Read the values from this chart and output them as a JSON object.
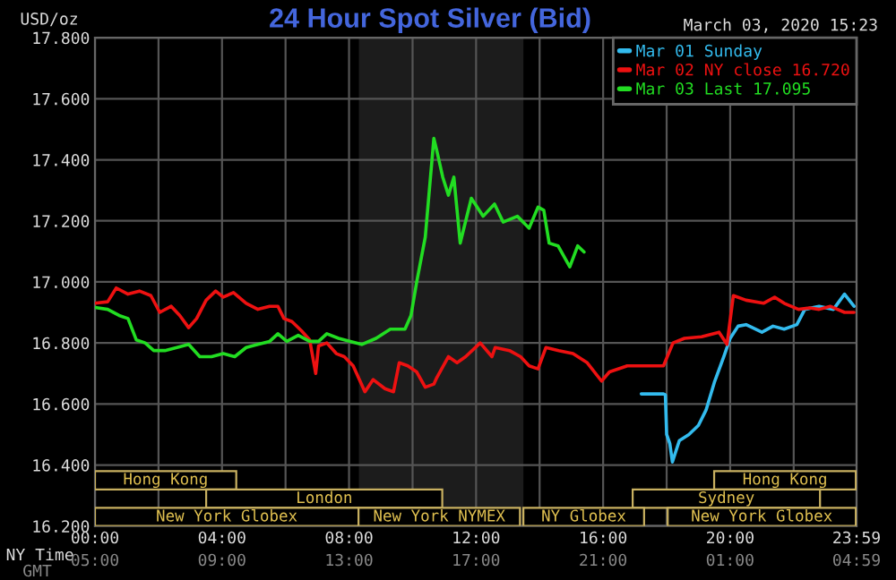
{
  "chart_data": {
    "type": "line",
    "title": "24 Hour Spot Silver (Bid)",
    "subtitle": "March 03, 2020 15:23",
    "xlabel": "NY Time",
    "x2label": "GMT",
    "ylabel": "USD/oz",
    "xlim": [
      0,
      23.98
    ],
    "xticks": [
      {
        "value": 0,
        "label": "00:00"
      },
      {
        "value": 2,
        "label": null
      },
      {
        "value": 4,
        "label": "04:00"
      },
      {
        "value": 6,
        "label": null
      },
      {
        "value": 8,
        "label": "08:00"
      },
      {
        "value": 10,
        "label": null
      },
      {
        "value": 12,
        "label": "12:00"
      },
      {
        "value": 14,
        "label": null
      },
      {
        "value": 16,
        "label": "16:00"
      },
      {
        "value": 18,
        "label": null
      },
      {
        "value": 20,
        "label": "20:00"
      },
      {
        "value": 22,
        "label": null
      },
      {
        "value": 23.98,
        "label": "23:59"
      }
    ],
    "x2lim": [
      "2020-03-03T05:00",
      "2020-03-04T04:59"
    ],
    "x2ticks": [
      {
        "value": "2020-03-03T05:00",
        "label": "05:00"
      },
      {
        "value": "2020-03-03T09:00",
        "label": "09:00"
      },
      {
        "value": "2020-03-03T13:00",
        "label": "13:00"
      },
      {
        "value": "2020-03-03T17:00",
        "label": "17:00"
      },
      {
        "value": "2020-03-03T21:00",
        "label": "21:00"
      },
      {
        "value": "2020-03-04T01:00",
        "label": "01:00"
      },
      {
        "value": "2020-03-04T04:59",
        "label": "04:59"
      }
    ],
    "ylim": [
      16.2,
      17.8
    ],
    "yticks": [
      {
        "value": 16.2,
        "label": "16.200"
      },
      {
        "value": 16.4,
        "label": "16.400"
      },
      {
        "value": 16.6,
        "label": "16.600"
      },
      {
        "value": 16.8,
        "label": "16.800"
      },
      {
        "value": 17.0,
        "label": "17.000"
      },
      {
        "value": 17.2,
        "label": "17.200"
      },
      {
        "value": 17.4,
        "label": "17.400"
      },
      {
        "value": 17.6,
        "label": "17.600"
      },
      {
        "value": 17.8,
        "label": "17.800"
      }
    ],
    "grid": true,
    "legend": "top right",
    "line_style": "solid",
    "bands": [
      {
        "axis": "x",
        "from": 8.31,
        "to": 13.49,
        "color": "#1c1c1c"
      }
    ],
    "annotations": [
      "Hong Kong",
      "Hong Kong",
      "London",
      "Sydney",
      "New York Globex",
      "New York NYMEX",
      "NY Globex",
      "New York Globex"
    ],
    "series": [
      {
        "name": "Mar 01 Sunday",
        "color": "#33bbee",
        "x": [
          17.2,
          17.9,
          17.96,
          18.0,
          18.1,
          18.18,
          18.4,
          18.7,
          19.0,
          19.24,
          19.5,
          19.8,
          20.0,
          20.25,
          20.5,
          21.0,
          21.35,
          21.7,
          22.1,
          22.35,
          22.8,
          23.25,
          23.6,
          23.9
        ],
        "values": [
          16.633,
          16.633,
          16.63,
          16.5,
          16.47,
          16.41,
          16.48,
          16.5,
          16.53,
          16.58,
          16.67,
          16.755,
          16.815,
          16.855,
          16.86,
          16.835,
          16.855,
          16.845,
          16.86,
          16.91,
          16.92,
          16.91,
          16.96,
          16.92
        ]
      },
      {
        "name": "Mar 02 NY close 16.720",
        "color": "#ee1111",
        "x": [
          0,
          0.4,
          0.67,
          1.04,
          1.4,
          1.76,
          2.04,
          2.4,
          2.67,
          2.95,
          3.2,
          3.5,
          3.8,
          4.04,
          4.36,
          4.76,
          5.13,
          5.5,
          5.76,
          5.95,
          6.2,
          6.5,
          6.76,
          6.95,
          7.04,
          7.3,
          7.6,
          7.85,
          8.13,
          8.5,
          8.76,
          9.13,
          9.4,
          9.58,
          9.85,
          10.13,
          10.4,
          10.67,
          10.76,
          11.13,
          11.4,
          11.67,
          12.13,
          12.5,
          12.6,
          13.05,
          13.4,
          13.67,
          13.95,
          14.2,
          14.6,
          15.05,
          15.5,
          15.95,
          16.2,
          16.76,
          17.3,
          17.9,
          18.2,
          18.56,
          19.1,
          19.65,
          19.9,
          20.1,
          20.5,
          21.05,
          21.4,
          21.7,
          22.15,
          22.5,
          22.8,
          23.15,
          23.6,
          23.9
        ],
        "values": [
          16.93,
          16.935,
          16.98,
          16.96,
          16.97,
          16.955,
          16.9,
          16.92,
          16.89,
          16.85,
          16.88,
          16.94,
          16.97,
          16.95,
          16.965,
          16.93,
          16.91,
          16.92,
          16.92,
          16.88,
          16.87,
          16.84,
          16.81,
          16.7,
          16.79,
          16.8,
          16.765,
          16.755,
          16.725,
          16.64,
          16.68,
          16.65,
          16.64,
          16.735,
          16.725,
          16.705,
          16.655,
          16.665,
          16.686,
          16.755,
          16.735,
          16.755,
          16.8,
          16.755,
          16.785,
          16.775,
          16.755,
          16.725,
          16.715,
          16.785,
          16.775,
          16.765,
          16.735,
          16.675,
          16.705,
          16.725,
          16.725,
          16.725,
          16.8,
          16.815,
          16.82,
          16.835,
          16.795,
          16.955,
          16.94,
          16.93,
          16.95,
          16.93,
          16.91,
          16.915,
          16.91,
          16.92,
          16.9,
          16.9
        ]
      },
      {
        "name": "Mar 03 Last 17.095",
        "color": "#22dd22",
        "x": [
          0,
          0.4,
          0.76,
          1.04,
          1.3,
          1.58,
          1.85,
          2.2,
          2.58,
          2.95,
          3.3,
          3.67,
          4.04,
          4.4,
          4.76,
          5.13,
          5.5,
          5.76,
          6.04,
          6.4,
          6.76,
          7.04,
          7.3,
          7.67,
          8.04,
          8.4,
          8.85,
          9.3,
          9.76,
          9.95,
          10.13,
          10.4,
          10.67,
          10.76,
          10.95,
          11.13,
          11.3,
          11.5,
          11.85,
          12.22,
          12.58,
          12.85,
          13.3,
          13.67,
          13.95,
          14.13,
          14.3,
          14.58,
          14.95,
          15.2,
          15.4
        ],
        "values": [
          16.916,
          16.91,
          16.89,
          16.88,
          16.81,
          16.8,
          16.775,
          16.775,
          16.785,
          16.795,
          16.755,
          16.755,
          16.765,
          16.755,
          16.785,
          16.795,
          16.805,
          16.83,
          16.805,
          16.825,
          16.805,
          16.805,
          16.83,
          16.815,
          16.805,
          16.795,
          16.815,
          16.845,
          16.845,
          16.89,
          17.0,
          17.147,
          17.47,
          17.431,
          17.343,
          17.284,
          17.343,
          17.127,
          17.274,
          17.215,
          17.255,
          17.196,
          17.215,
          17.176,
          17.245,
          17.235,
          17.127,
          17.118,
          17.049,
          17.118,
          17.098
        ]
      }
    ]
  }
}
